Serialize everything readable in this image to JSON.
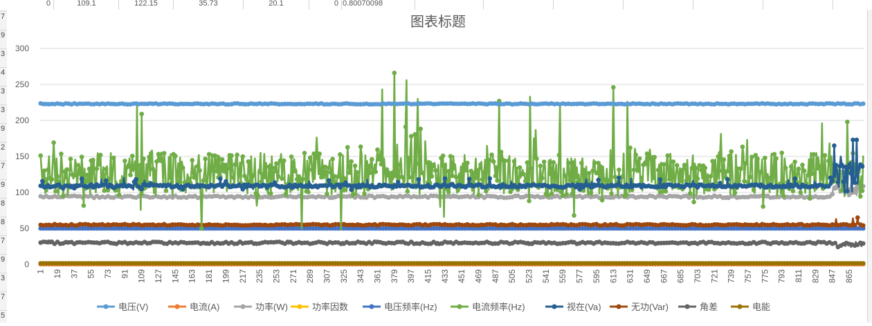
{
  "sheet": {
    "top_cells": [
      "0",
      "109.1",
      "122.15",
      "35.73",
      "20.1",
      "0",
      "0.80070098"
    ],
    "row_numbers": [
      "7",
      "9",
      "3",
      "4",
      "3",
      "3",
      "9",
      "2",
      "7",
      "9",
      "8",
      "8",
      "7",
      "9",
      "3",
      "7",
      "5"
    ]
  },
  "colors": {
    "grid": "#d9d9d9",
    "axis": "#bfbfbf",
    "tick_text": "#595959",
    "title_text": "#595959"
  },
  "chart_data": {
    "type": "line",
    "title": "图表标题",
    "xlabel": "",
    "ylabel": "",
    "ylim": [
      0,
      300
    ],
    "yticks": [
      0,
      50,
      100,
      150,
      200,
      250,
      300
    ],
    "x_count": 880,
    "x_tick_labels": [
      "1",
      "19",
      "37",
      "55",
      "73",
      "91",
      "109",
      "127",
      "145",
      "163",
      "181",
      "199",
      "217",
      "235",
      "253",
      "271",
      "289",
      "307",
      "325",
      "343",
      "361",
      "379",
      "397",
      "415",
      "433",
      "451",
      "469",
      "487",
      "505",
      "523",
      "541",
      "559",
      "577",
      "595",
      "613",
      "631",
      "649",
      "667",
      "685",
      "703",
      "721",
      "739",
      "757",
      "775",
      "793",
      "811",
      "829",
      "847",
      "865"
    ],
    "grid": true,
    "legend_position": "bottom",
    "series": [
      {
        "name": "电压(V)",
        "color": "#5b9bd5",
        "base": 223,
        "spikes": []
      },
      {
        "name": "电流(A)",
        "color": "#ed7d31",
        "base": 0.3,
        "spikes": []
      },
      {
        "name": "功率(W)",
        "color": "#a5a5a5",
        "base": 94,
        "spikes": []
      },
      {
        "name": "功率因数",
        "color": "#ffc000",
        "base": 0.8,
        "spikes": []
      },
      {
        "name": "电压频率(Hz)",
        "color": "#4472c4",
        "base": 50,
        "spikes": []
      },
      {
        "name": "电流频率(Hz)",
        "color": "#70ad47",
        "base": 125,
        "spikes": [
          [
            103,
            220
          ],
          [
            108,
            209
          ],
          [
            172,
            50
          ],
          [
            279,
            50
          ],
          [
            321,
            48
          ],
          [
            378,
            266
          ],
          [
            365,
            243
          ],
          [
            391,
            256
          ],
          [
            403,
            230
          ],
          [
            431,
            66
          ],
          [
            490,
            227
          ],
          [
            523,
            233
          ],
          [
            612,
            246
          ],
          [
            627,
            226
          ],
          [
            555,
            220
          ],
          [
            570,
            68
          ],
          [
            835,
            196
          ],
          [
            862,
            198
          ]
        ]
      },
      {
        "name": "视在(Va)",
        "color": "#255e91",
        "base": 109,
        "spikes": [
          [
            848,
            165
          ],
          [
            868,
            173
          ],
          [
            872,
            173
          ],
          [
            855,
            150
          ]
        ]
      },
      {
        "name": "无功(Var)",
        "color": "#9e480e",
        "base": 55,
        "spikes": [
          [
            850,
            63
          ],
          [
            868,
            64
          ],
          [
            873,
            65
          ]
        ]
      },
      {
        "name": "角差",
        "color": "#636363",
        "base": 30,
        "spikes": []
      },
      {
        "name": "电能",
        "color": "#997300",
        "base": 1.5,
        "spikes": []
      }
    ]
  }
}
